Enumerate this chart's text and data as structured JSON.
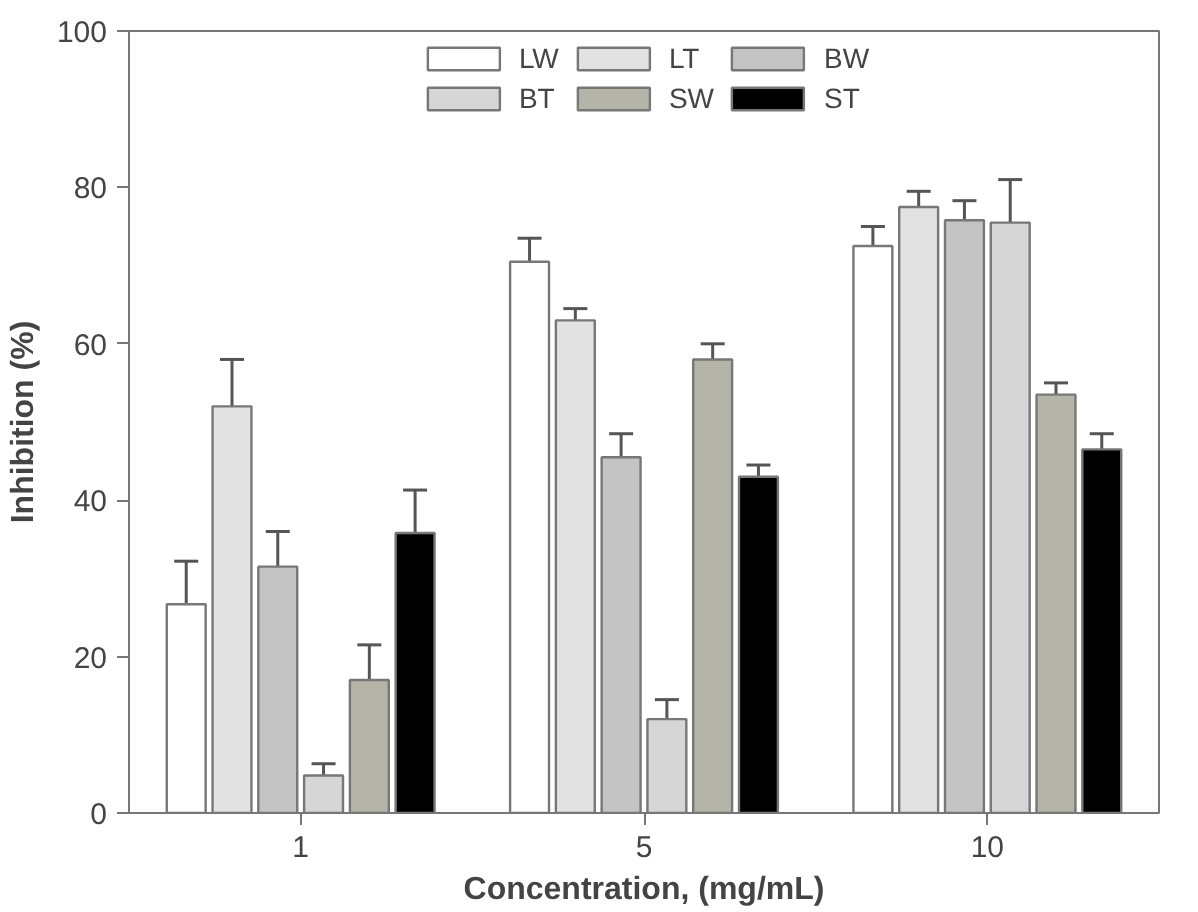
{
  "chart_data": {
    "type": "bar",
    "xlabel": "Concentration, (mg/mL)",
    "ylabel": "Inhibition (%)",
    "categories": [
      "1",
      "5",
      "10"
    ],
    "ylim": [
      0,
      100
    ],
    "yticks": [
      0,
      20,
      40,
      60,
      80,
      100
    ],
    "grid": false,
    "legend": "top",
    "series": [
      {
        "name": "LW",
        "color": "#ffffff",
        "values": [
          26.7,
          70.5,
          72.5
        ],
        "errors": [
          [
            26.7,
            32.2
          ],
          [
            70.5,
            73.5
          ],
          [
            72.5,
            75
          ]
        ]
      },
      {
        "name": "LT",
        "color": "#e2e2e2",
        "values": [
          52,
          63,
          77.5
        ],
        "errors": [
          [
            52,
            58
          ],
          [
            63,
            64.5
          ],
          [
            77.5,
            79.5
          ]
        ]
      },
      {
        "name": "BW",
        "color": "#c4c4c4",
        "values": [
          31.5,
          45.5,
          75.8
        ],
        "errors": [
          [
            31.5,
            36
          ],
          [
            45.5,
            48.5
          ],
          [
            75.8,
            78.3
          ]
        ]
      },
      {
        "name": "BT",
        "color": "#d6d6d6",
        "values": [
          4.8,
          12,
          75.5
        ],
        "errors": [
          [
            4.8,
            6.3
          ],
          [
            12,
            14.5
          ],
          [
            75.5,
            81
          ]
        ]
      },
      {
        "name": "SW",
        "color": "#b4b5a8",
        "values": [
          17,
          58,
          53.5
        ],
        "errors": [
          [
            17,
            21.5
          ],
          [
            58,
            60
          ],
          [
            53.5,
            55
          ]
        ]
      },
      {
        "name": "ST",
        "color": "#000000",
        "values": [
          35.8,
          43,
          46.5
        ],
        "errors": [
          [
            35.8,
            41.3
          ],
          [
            43,
            44.5
          ],
          [
            46.5,
            48.5
          ]
        ]
      }
    ]
  }
}
